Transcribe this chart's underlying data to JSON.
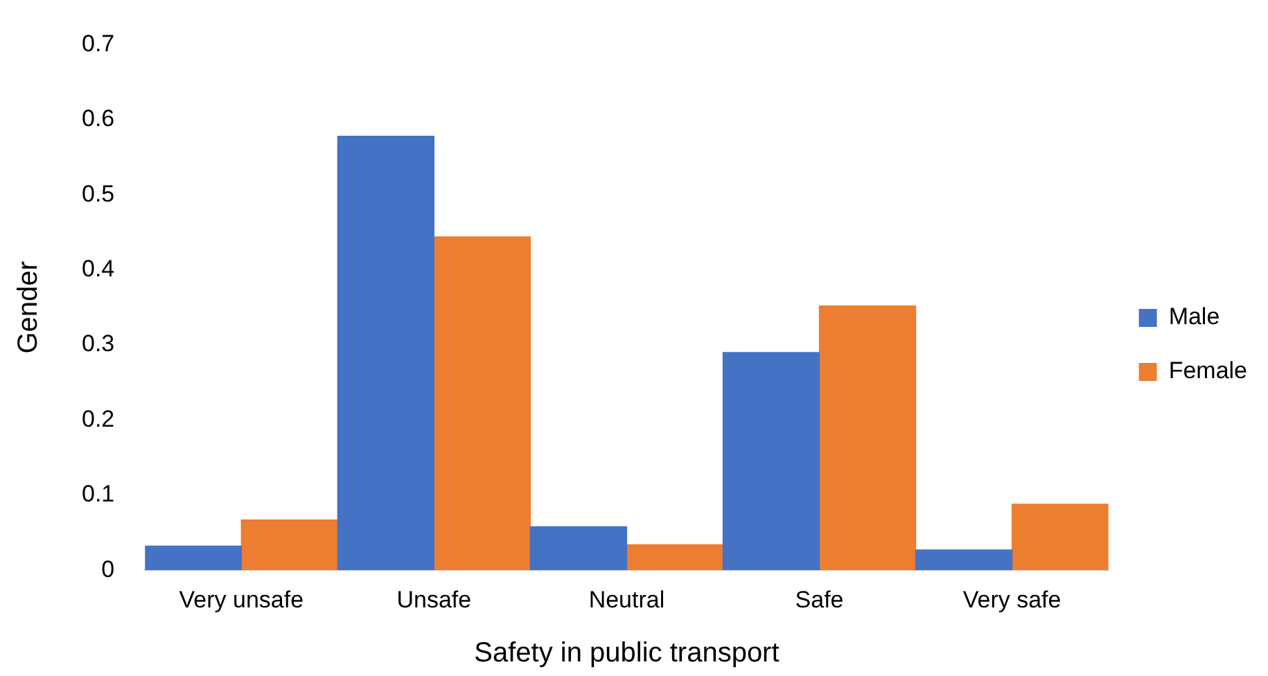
{
  "chart_data": {
    "type": "bar",
    "xlabel": "Safety in public transport",
    "ylabel": "Gender",
    "categories": [
      "Very unsafe",
      "Unsafe",
      "Neutral",
      "Safe",
      "Very safe"
    ],
    "series": [
      {
        "name": "Male",
        "color": "#4472c4",
        "values": [
          0.032,
          0.578,
          0.058,
          0.29,
          0.027
        ]
      },
      {
        "name": "Female",
        "color": "#ed7d31",
        "values": [
          0.067,
          0.444,
          0.034,
          0.352,
          0.088
        ]
      }
    ],
    "ylim": [
      0,
      0.7
    ],
    "yticks": [
      0,
      0.1,
      0.2,
      0.3,
      0.4,
      0.5,
      0.6,
      0.7
    ],
    "grid": false,
    "legend": "right"
  }
}
